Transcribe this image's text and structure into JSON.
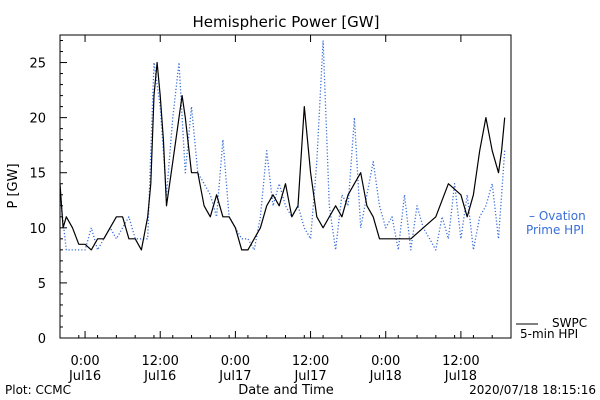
{
  "chart_data": {
    "type": "line",
    "title": "Hemispheric Power [GW]",
    "xlabel": "Date and Time",
    "ylabel": "P [GW]",
    "ylim": [
      0,
      27.5
    ],
    "xlim": [
      "2020-07-15 20:00",
      "2020-07-18 20:00"
    ],
    "yticks": [
      0,
      5,
      10,
      15,
      20,
      25
    ],
    "xticks": [
      {
        "time": "2020-07-16 00:00",
        "top": "0:00",
        "bottom": "Jul16"
      },
      {
        "time": "2020-07-16 12:00",
        "top": "12:00",
        "bottom": "Jul16"
      },
      {
        "time": "2020-07-17 00:00",
        "top": "0:00",
        "bottom": "Jul17"
      },
      {
        "time": "2020-07-17 12:00",
        "top": "12:00",
        "bottom": "Jul17"
      },
      {
        "time": "2020-07-18 00:00",
        "top": "0:00",
        "bottom": "Jul18"
      },
      {
        "time": "2020-07-18 12:00",
        "top": "12:00",
        "bottom": "Jul18"
      }
    ],
    "series": [
      {
        "name": "SWPC 5-min HPI",
        "color": "#000000",
        "style": "solid",
        "x": [
          "2020-07-15 20:00",
          "2020-07-15 20:30",
          "2020-07-15 21:00",
          "2020-07-15 22:00",
          "2020-07-15 23:00",
          "2020-07-16 00:00",
          "2020-07-16 01:00",
          "2020-07-16 02:00",
          "2020-07-16 03:00",
          "2020-07-16 04:00",
          "2020-07-16 05:00",
          "2020-07-16 06:00",
          "2020-07-16 07:00",
          "2020-07-16 08:00",
          "2020-07-16 09:00",
          "2020-07-16 10:00",
          "2020-07-16 10:30",
          "2020-07-16 11:00",
          "2020-07-16 11:30",
          "2020-07-16 12:00",
          "2020-07-16 12:30",
          "2020-07-16 13:00",
          "2020-07-16 14:00",
          "2020-07-16 15:00",
          "2020-07-16 15:30",
          "2020-07-16 16:00",
          "2020-07-16 17:00",
          "2020-07-16 18:00",
          "2020-07-16 19:00",
          "2020-07-16 20:00",
          "2020-07-16 21:00",
          "2020-07-16 22:00",
          "2020-07-16 23:00",
          "2020-07-17 00:00",
          "2020-07-17 01:00",
          "2020-07-17 02:00",
          "2020-07-17 03:00",
          "2020-07-17 04:00",
          "2020-07-17 05:00",
          "2020-07-17 06:00",
          "2020-07-17 07:00",
          "2020-07-17 08:00",
          "2020-07-17 09:00",
          "2020-07-17 10:00",
          "2020-07-17 11:00",
          "2020-07-17 12:00",
          "2020-07-17 13:00",
          "2020-07-17 14:00",
          "2020-07-17 15:00",
          "2020-07-17 16:00",
          "2020-07-17 17:00",
          "2020-07-17 18:00",
          "2020-07-17 19:00",
          "2020-07-17 20:00",
          "2020-07-17 21:00",
          "2020-07-17 22:00",
          "2020-07-17 23:00",
          "2020-07-18 00:00",
          "2020-07-18 01:00",
          "2020-07-18 02:00",
          "2020-07-18 03:00",
          "2020-07-18 04:00",
          "2020-07-18 06:00",
          "2020-07-18 08:00",
          "2020-07-18 10:00",
          "2020-07-18 12:00",
          "2020-07-18 13:00",
          "2020-07-18 14:00",
          "2020-07-18 15:00",
          "2020-07-18 16:00",
          "2020-07-18 17:00",
          "2020-07-18 18:00",
          "2020-07-18 18:30",
          "2020-07-18 19:00"
        ],
        "y": [
          14,
          10,
          11,
          10,
          8.5,
          8.5,
          8,
          9,
          9,
          10,
          11,
          11,
          9,
          9,
          8,
          11,
          14,
          22,
          25,
          22,
          18,
          12,
          16,
          20,
          22,
          20,
          15,
          15,
          12,
          11,
          13,
          11,
          11,
          10,
          8,
          8,
          9,
          10,
          12,
          13,
          12,
          14,
          11,
          12,
          21,
          15,
          11,
          10,
          11,
          12,
          11,
          13,
          14,
          15,
          12,
          11,
          9,
          9,
          9,
          9,
          9,
          9,
          10,
          11,
          14,
          13,
          11,
          13,
          17,
          20,
          17,
          15,
          17,
          20
        ]
      },
      {
        "name": "Ovation Prime HPI",
        "color": "#3a6fd8",
        "style": "dotted",
        "x": [
          "2020-07-15 20:00",
          "2020-07-15 21:00",
          "2020-07-15 22:00",
          "2020-07-15 23:00",
          "2020-07-16 00:00",
          "2020-07-16 01:00",
          "2020-07-16 02:00",
          "2020-07-16 03:00",
          "2020-07-16 04:00",
          "2020-07-16 05:00",
          "2020-07-16 06:00",
          "2020-07-16 07:00",
          "2020-07-16 08:00",
          "2020-07-16 09:00",
          "2020-07-16 10:00",
          "2020-07-16 11:00",
          "2020-07-16 12:00",
          "2020-07-16 13:00",
          "2020-07-16 14:00",
          "2020-07-16 15:00",
          "2020-07-16 16:00",
          "2020-07-16 17:00",
          "2020-07-16 18:00",
          "2020-07-16 19:00",
          "2020-07-16 20:00",
          "2020-07-16 21:00",
          "2020-07-16 22:00",
          "2020-07-16 23:00",
          "2020-07-17 00:00",
          "2020-07-17 01:00",
          "2020-07-17 02:00",
          "2020-07-17 03:00",
          "2020-07-17 04:00",
          "2020-07-17 05:00",
          "2020-07-17 06:00",
          "2020-07-17 07:00",
          "2020-07-17 08:00",
          "2020-07-17 09:00",
          "2020-07-17 10:00",
          "2020-07-17 11:00",
          "2020-07-17 12:00",
          "2020-07-17 13:00",
          "2020-07-17 14:00",
          "2020-07-17 15:00",
          "2020-07-17 16:00",
          "2020-07-17 17:00",
          "2020-07-17 18:00",
          "2020-07-17 19:00",
          "2020-07-17 20:00",
          "2020-07-17 21:00",
          "2020-07-17 22:00",
          "2020-07-17 23:00",
          "2020-07-18 00:00",
          "2020-07-18 01:00",
          "2020-07-18 02:00",
          "2020-07-18 03:00",
          "2020-07-18 04:00",
          "2020-07-18 05:00",
          "2020-07-18 06:00",
          "2020-07-18 07:00",
          "2020-07-18 08:00",
          "2020-07-18 09:00",
          "2020-07-18 10:00",
          "2020-07-18 11:00",
          "2020-07-18 12:00",
          "2020-07-18 13:00",
          "2020-07-18 14:00",
          "2020-07-18 15:00",
          "2020-07-18 16:00",
          "2020-07-18 17:00",
          "2020-07-18 18:00",
          "2020-07-18 19:00"
        ],
        "y": [
          13,
          8,
          8,
          8,
          8,
          10,
          8,
          9,
          10,
          9,
          10,
          11,
          9,
          9,
          9,
          25,
          21,
          13,
          20,
          25,
          15,
          21,
          15,
          14,
          13,
          11,
          18,
          11,
          10,
          9,
          9,
          8,
          11,
          17,
          12,
          14,
          12,
          11,
          12,
          10,
          9,
          16,
          27,
          12,
          8,
          13,
          12,
          20,
          10,
          13,
          16,
          12,
          10,
          11,
          8,
          13,
          8,
          12,
          10,
          9,
          8,
          11,
          9,
          14,
          9,
          13,
          8,
          11,
          12,
          14,
          9,
          17
        ]
      }
    ]
  },
  "figure": {
    "legend_ovation": [
      "– Ovation",
      "Prime HPI"
    ],
    "legend_swpc": [
      "SWPC",
      "5-min HPI"
    ],
    "footer_left": "Plot: CCMC",
    "footer_right": "2020/07/18 18:15:16"
  }
}
